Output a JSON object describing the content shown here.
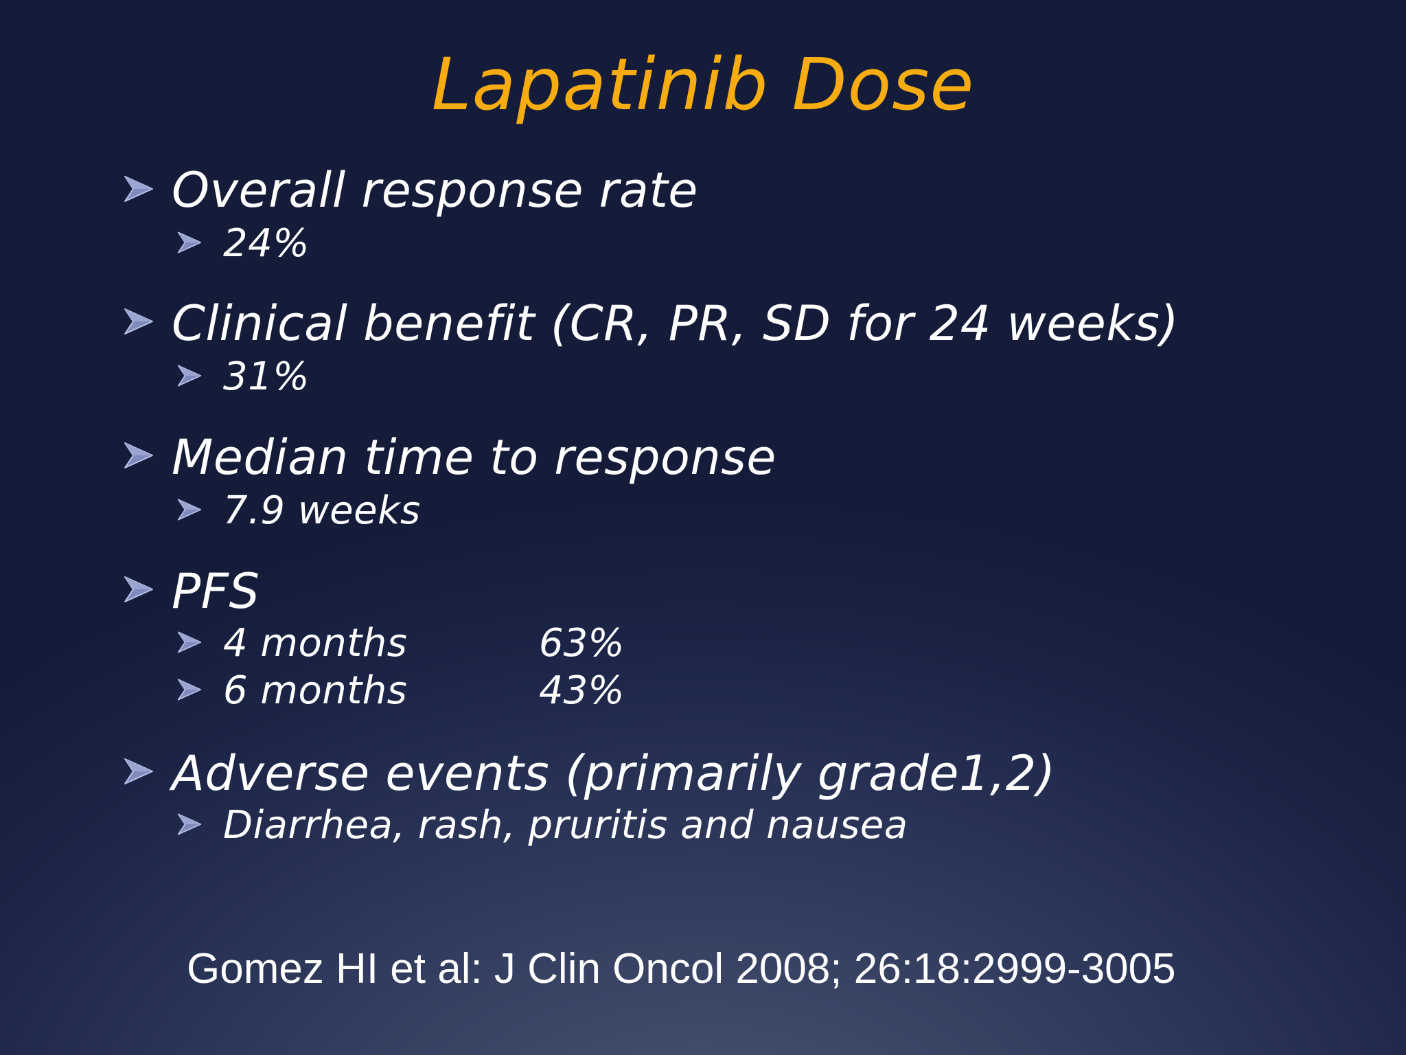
{
  "slide": {
    "title": "Lapatinib Dose",
    "colors": {
      "title": "#f7ad12",
      "text": "#ffffff",
      "bullet": "#8a96c6",
      "background": "#1c2547"
    },
    "icons": {
      "bullet": "arrow-bullet-icon"
    },
    "items": [
      {
        "label": "Overall response rate",
        "sub": [
          "24%"
        ]
      },
      {
        "label": "Clinical benefit (CR, PR, SD for 24 weeks)",
        "sub": [
          "31%"
        ]
      },
      {
        "label": "Median time to response",
        "sub": [
          "7.9 weeks"
        ]
      },
      {
        "label": "PFS",
        "sub_rows": [
          {
            "label": "4 months",
            "value": "63%"
          },
          {
            "label": "6 months",
            "value": "43%"
          }
        ]
      },
      {
        "label": "Adverse events (primarily grade1,2)",
        "sub": [
          "Diarrhea, rash, pruritis and nausea"
        ]
      }
    ],
    "reference": "Gomez HI et al: J Clin Oncol 2008; 26:18:2999-3005"
  }
}
